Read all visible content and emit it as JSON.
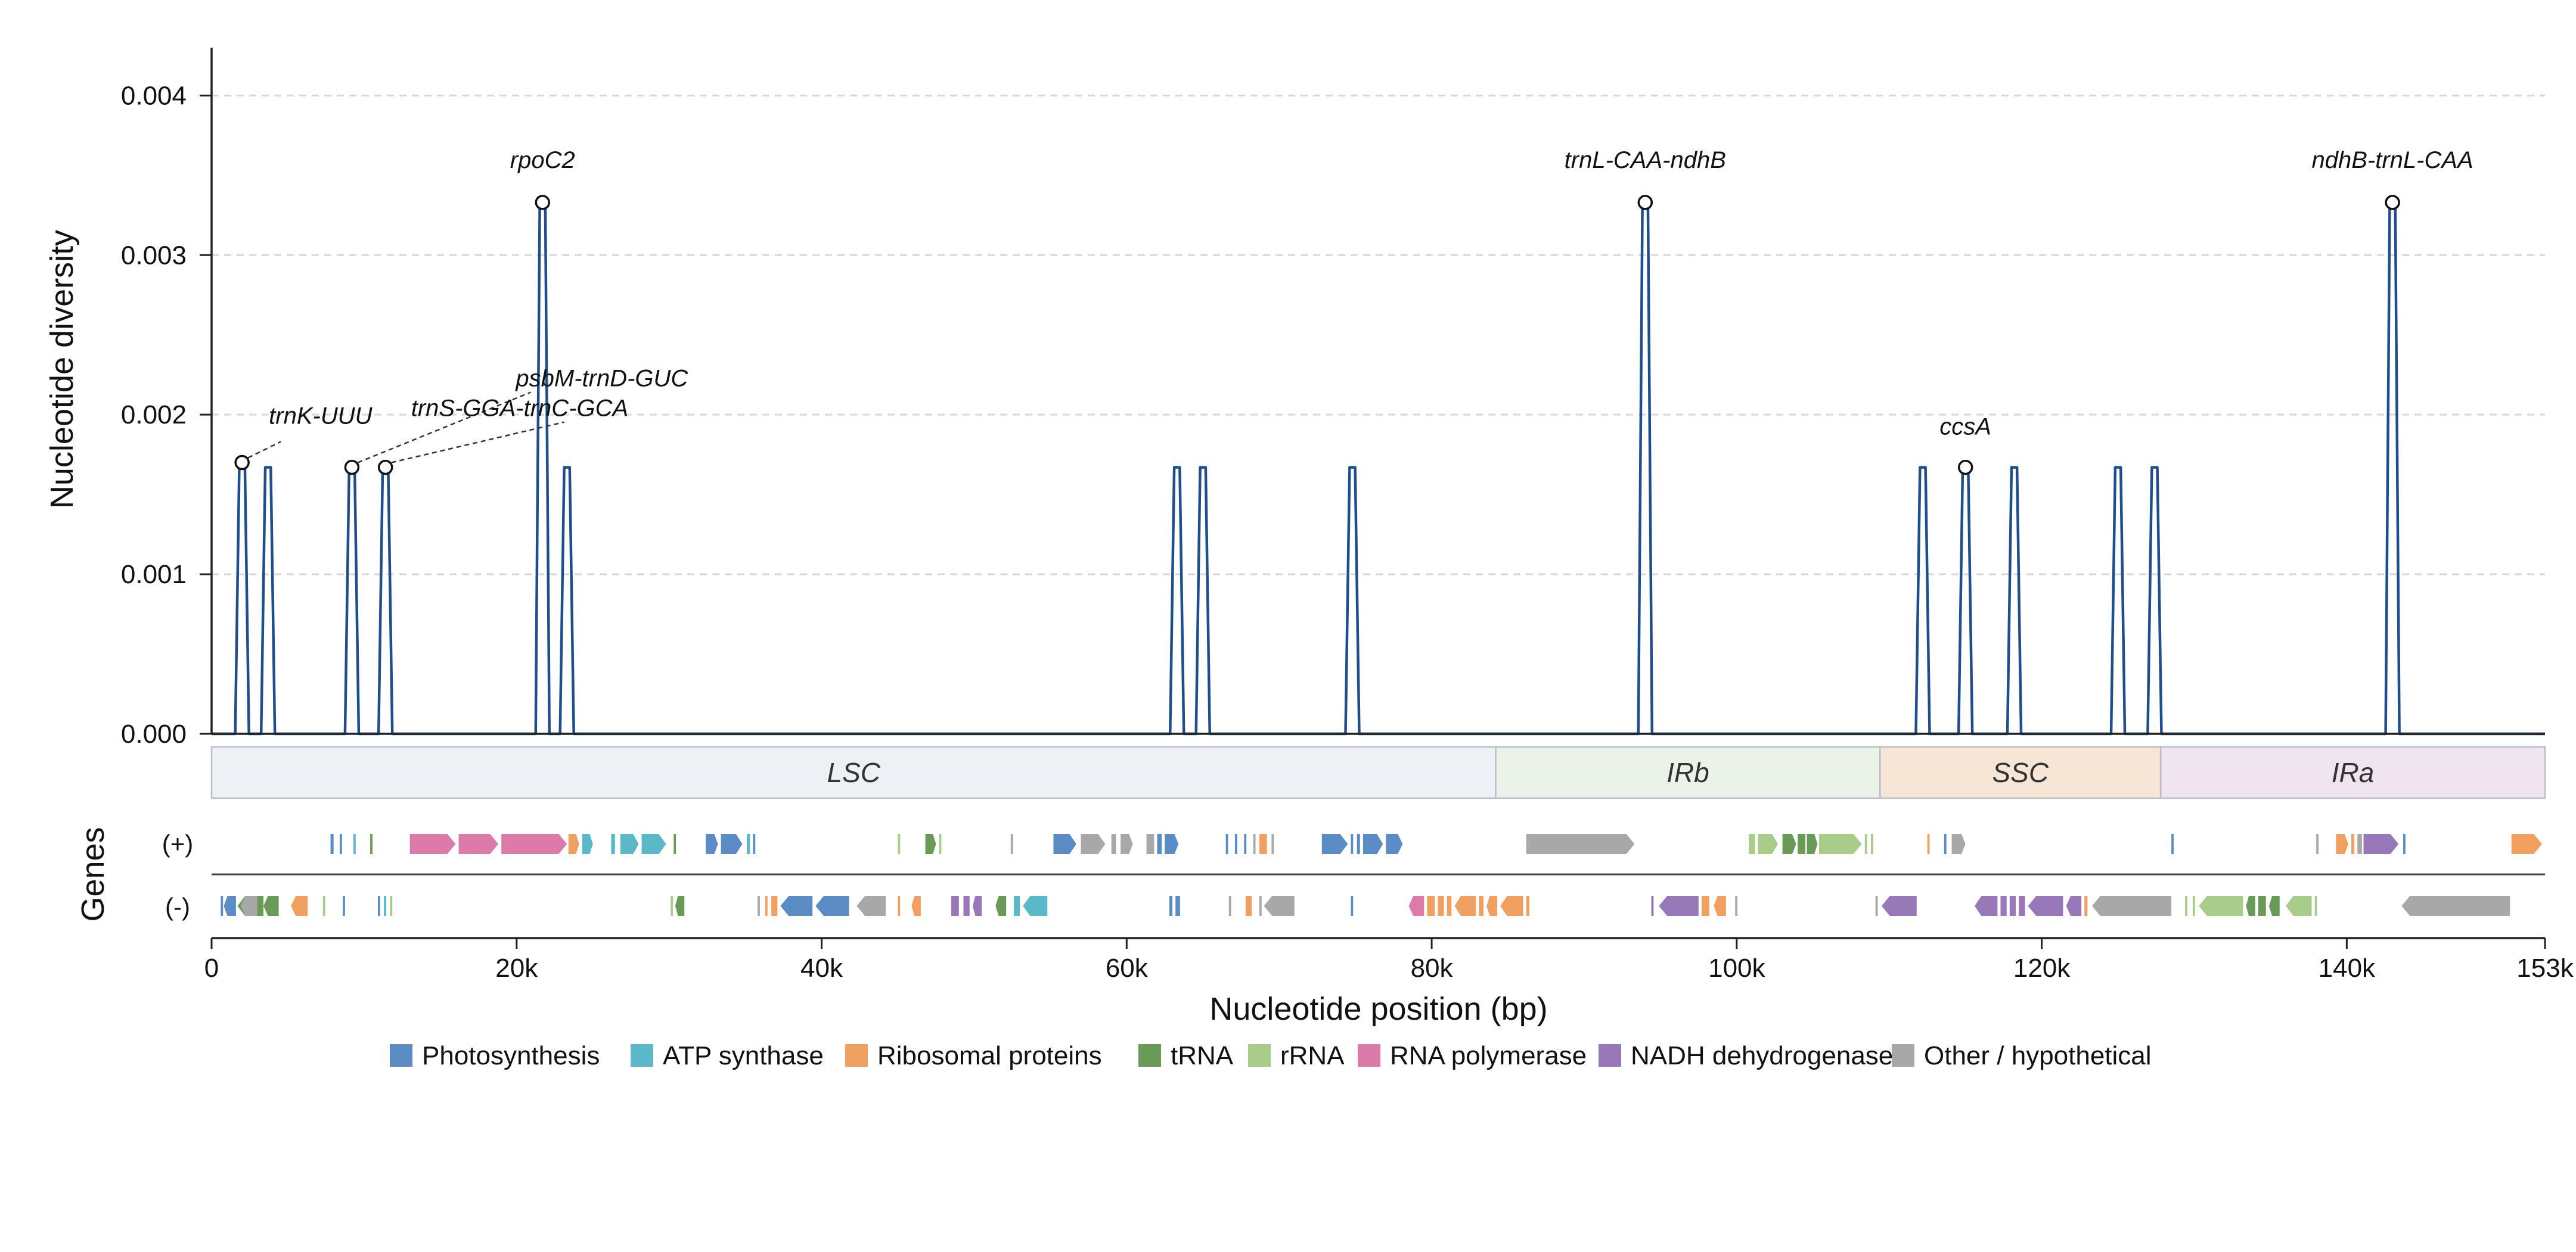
{
  "chart_data": {
    "type": "line",
    "xlabel": "Nucleotide position (bp)",
    "ylabel": "Nucleotide diversity",
    "genes_label": "Genes",
    "xlim": [
      0,
      153000
    ],
    "ylim": [
      0,
      0.0043
    ],
    "x_ticks": [
      {
        "value": 0,
        "label": "0"
      },
      {
        "value": 20000,
        "label": "20k"
      },
      {
        "value": 40000,
        "label": "40k"
      },
      {
        "value": 60000,
        "label": "60k"
      },
      {
        "value": 80000,
        "label": "80k"
      },
      {
        "value": 100000,
        "label": "100k"
      },
      {
        "value": 120000,
        "label": "120k"
      },
      {
        "value": 140000,
        "label": "140k"
      },
      {
        "value": 153000,
        "label": "153k"
      }
    ],
    "y_ticks": [
      {
        "value": 0,
        "label": "0.000"
      },
      {
        "value": 0.001,
        "label": "0.001"
      },
      {
        "value": 0.002,
        "label": "0.002"
      },
      {
        "value": 0.003,
        "label": "0.003"
      },
      {
        "value": 0.004,
        "label": "0.004"
      }
    ],
    "grid": "horizontal dashed",
    "series_color": "#1f4e8c",
    "peaks": [
      {
        "x": 2000,
        "y": 0.0017
      },
      {
        "x": 3700,
        "y": 0.00167
      },
      {
        "x": 9200,
        "y": 0.00167
      },
      {
        "x": 11400,
        "y": 0.00167
      },
      {
        "x": 21700,
        "y": 0.00333
      },
      {
        "x": 23300,
        "y": 0.00167
      },
      {
        "x": 63300,
        "y": 0.00167
      },
      {
        "x": 65000,
        "y": 0.00167
      },
      {
        "x": 74800,
        "y": 0.00167
      },
      {
        "x": 94000,
        "y": 0.00333
      },
      {
        "x": 112200,
        "y": 0.00167
      },
      {
        "x": 115000,
        "y": 0.00167
      },
      {
        "x": 118200,
        "y": 0.00167
      },
      {
        "x": 125000,
        "y": 0.00167
      },
      {
        "x": 127400,
        "y": 0.00167
      },
      {
        "x": 143000,
        "y": 0.00333
      }
    ],
    "annotations": [
      {
        "label": "trnK-UUU",
        "x": 2000,
        "y": 0.0017
      },
      {
        "label": "psbM-trnD-GUC",
        "x": 9200,
        "y": 0.00167
      },
      {
        "label": "trnS-GGA-trnC-GCA",
        "x": 11400,
        "y": 0.00167
      },
      {
        "label": "rpoC2",
        "x": 21700,
        "y": 0.00333
      },
      {
        "label": "trnL-CAA-ndhB",
        "x": 94000,
        "y": 0.00333
      },
      {
        "label": "ccsA",
        "x": 115000,
        "y": 0.00167
      },
      {
        "label": "ndhB-trnL-CAA",
        "x": 143000,
        "y": 0.00333
      }
    ],
    "regions": [
      {
        "label": "LSC",
        "start": 0,
        "end": 84200,
        "color": "#edf1f5"
      },
      {
        "label": "IRb",
        "start": 84200,
        "end": 109400,
        "color": "#ebf2e8"
      },
      {
        "label": "SSC",
        "start": 109400,
        "end": 127800,
        "color": "#f7e6d6"
      },
      {
        "label": "IRa",
        "start": 127800,
        "end": 153000,
        "color": "#f0e4f0"
      }
    ],
    "strand_labels": {
      "plus": "(+)",
      "minus": "(-)"
    },
    "gene_categories": [
      {
        "key": "photo",
        "label": "Photosynthesis",
        "color": "#5b8cc5"
      },
      {
        "key": "atp",
        "label": "ATP synthase",
        "color": "#5ab8c8"
      },
      {
        "key": "ribo",
        "label": "Ribosomal proteins",
        "color": "#f0a060"
      },
      {
        "key": "trna",
        "label": "tRNA",
        "color": "#6a9a58"
      },
      {
        "key": "rrna",
        "label": "rRNA",
        "color": "#a8cc8a"
      },
      {
        "key": "rnapol",
        "label": "RNA polymerase",
        "color": "#dc7aaa"
      },
      {
        "key": "ndh",
        "label": "NADH dehydrogenase",
        "color": "#9878b8"
      },
      {
        "key": "other",
        "label": "Other / hypothetical",
        "color": "#a8a8a8"
      }
    ],
    "genes_plus": [
      {
        "s": 7800,
        "e": 8000,
        "c": "photo"
      },
      {
        "s": 8400,
        "e": 8550,
        "c": "photo"
      },
      {
        "s": 9300,
        "e": 9450,
        "c": "atp"
      },
      {
        "s": 10400,
        "e": 10550,
        "c": "trna"
      },
      {
        "s": 13000,
        "e": 16000,
        "c": "rnapol"
      },
      {
        "s": 16200,
        "e": 18800,
        "c": "rnapol"
      },
      {
        "s": 19000,
        "e": 23300,
        "c": "rnapol"
      },
      {
        "s": 23400,
        "e": 24100,
        "c": "ribo"
      },
      {
        "s": 24300,
        "e": 25000,
        "c": "atp"
      },
      {
        "s": 26200,
        "e": 26450,
        "c": "atp"
      },
      {
        "s": 26800,
        "e": 28000,
        "c": "atp"
      },
      {
        "s": 28200,
        "e": 29800,
        "c": "atp"
      },
      {
        "s": 30300,
        "e": 30450,
        "c": "trna"
      },
      {
        "s": 32400,
        "e": 33200,
        "c": "photo"
      },
      {
        "s": 33400,
        "e": 34800,
        "c": "photo"
      },
      {
        "s": 35100,
        "e": 35300,
        "c": "atp"
      },
      {
        "s": 35500,
        "e": 35650,
        "c": "photo"
      },
      {
        "s": 45000,
        "e": 45150,
        "c": "rrna"
      },
      {
        "s": 46800,
        "e": 47500,
        "c": "trna"
      },
      {
        "s": 47700,
        "e": 47850,
        "c": "rrna"
      },
      {
        "s": 52400,
        "e": 52550,
        "c": "other"
      },
      {
        "s": 55200,
        "e": 56700,
        "c": "photo"
      },
      {
        "s": 57000,
        "e": 58600,
        "c": "other"
      },
      {
        "s": 59000,
        "e": 59300,
        "c": "other"
      },
      {
        "s": 59600,
        "e": 60400,
        "c": "other"
      },
      {
        "s": 61300,
        "e": 61800,
        "c": "other"
      },
      {
        "s": 62000,
        "e": 62300,
        "c": "photo"
      },
      {
        "s": 62500,
        "e": 63400,
        "c": "photo"
      },
      {
        "s": 66500,
        "e": 66650,
        "c": "photo"
      },
      {
        "s": 67100,
        "e": 67250,
        "c": "photo"
      },
      {
        "s": 67700,
        "e": 67850,
        "c": "photo"
      },
      {
        "s": 68300,
        "e": 68450,
        "c": "other"
      },
      {
        "s": 68700,
        "e": 69200,
        "c": "ribo"
      },
      {
        "s": 69500,
        "e": 69650,
        "c": "other"
      },
      {
        "s": 72800,
        "e": 74500,
        "c": "photo"
      },
      {
        "s": 74700,
        "e": 74850,
        "c": "photo"
      },
      {
        "s": 75100,
        "e": 75300,
        "c": "photo"
      },
      {
        "s": 75500,
        "e": 76800,
        "c": "photo"
      },
      {
        "s": 77000,
        "e": 78100,
        "c": "photo"
      },
      {
        "s": 86200,
        "e": 93300,
        "c": "other"
      },
      {
        "s": 100800,
        "e": 101200,
        "c": "rrna"
      },
      {
        "s": 101400,
        "e": 102700,
        "c": "rrna"
      },
      {
        "s": 103000,
        "e": 103900,
        "c": "trna"
      },
      {
        "s": 104000,
        "e": 104500,
        "c": "trna"
      },
      {
        "s": 104600,
        "e": 105300,
        "c": "trna"
      },
      {
        "s": 105400,
        "e": 108200,
        "c": "rrna"
      },
      {
        "s": 108400,
        "e": 108550,
        "c": "rrna"
      },
      {
        "s": 108800,
        "e": 108950,
        "c": "rrna"
      },
      {
        "s": 112500,
        "e": 112650,
        "c": "ribo"
      },
      {
        "s": 113600,
        "e": 113750,
        "c": "photo"
      },
      {
        "s": 114100,
        "e": 115000,
        "c": "other"
      },
      {
        "s": 128500,
        "e": 128650,
        "c": "photo"
      },
      {
        "s": 138000,
        "e": 138150,
        "c": "other"
      },
      {
        "s": 139300,
        "e": 140100,
        "c": "ribo"
      },
      {
        "s": 140300,
        "e": 140500,
        "c": "ribo"
      },
      {
        "s": 140700,
        "e": 141000,
        "c": "other"
      },
      {
        "s": 141100,
        "e": 143400,
        "c": "ndh"
      },
      {
        "s": 143700,
        "e": 143850,
        "c": "photo"
      },
      {
        "s": 150800,
        "e": 152800,
        "c": "ribo"
      }
    ],
    "genes_minus": [
      {
        "s": 600,
        "e": 750,
        "c": "photo"
      },
      {
        "s": 800,
        "e": 1600,
        "c": "photo"
      },
      {
        "s": 1700,
        "e": 3400,
        "c": "trna"
      },
      {
        "s": 1900,
        "e": 3000,
        "c": "other"
      },
      {
        "s": 3400,
        "e": 4400,
        "c": "trna"
      },
      {
        "s": 5200,
        "e": 6300,
        "c": "ribo"
      },
      {
        "s": 7300,
        "e": 7450,
        "c": "rrna"
      },
      {
        "s": 8600,
        "e": 8750,
        "c": "photo"
      },
      {
        "s": 10900,
        "e": 11050,
        "c": "photo"
      },
      {
        "s": 11300,
        "e": 11450,
        "c": "atp"
      },
      {
        "s": 11700,
        "e": 11850,
        "c": "rrna"
      },
      {
        "s": 30100,
        "e": 30250,
        "c": "rrna"
      },
      {
        "s": 30400,
        "e": 31000,
        "c": "trna"
      },
      {
        "s": 35800,
        "e": 35950,
        "c": "other"
      },
      {
        "s": 36300,
        "e": 36450,
        "c": "ribo"
      },
      {
        "s": 36700,
        "e": 37100,
        "c": "ribo"
      },
      {
        "s": 37300,
        "e": 39400,
        "c": "photo"
      },
      {
        "s": 39600,
        "e": 41800,
        "c": "photo"
      },
      {
        "s": 42300,
        "e": 44200,
        "c": "other"
      },
      {
        "s": 45000,
        "e": 45150,
        "c": "ribo"
      },
      {
        "s": 45900,
        "e": 46500,
        "c": "ribo"
      },
      {
        "s": 48500,
        "e": 49000,
        "c": "ndh"
      },
      {
        "s": 49300,
        "e": 49700,
        "c": "ndh"
      },
      {
        "s": 49900,
        "e": 50500,
        "c": "ndh"
      },
      {
        "s": 51400,
        "e": 52100,
        "c": "trna"
      },
      {
        "s": 52600,
        "e": 53000,
        "c": "atp"
      },
      {
        "s": 53200,
        "e": 54800,
        "c": "atp"
      },
      {
        "s": 62800,
        "e": 63000,
        "c": "photo"
      },
      {
        "s": 63200,
        "e": 63500,
        "c": "photo"
      },
      {
        "s": 66700,
        "e": 66850,
        "c": "other"
      },
      {
        "s": 67800,
        "e": 68200,
        "c": "ribo"
      },
      {
        "s": 68700,
        "e": 68850,
        "c": "other"
      },
      {
        "s": 69000,
        "e": 71000,
        "c": "other"
      },
      {
        "s": 74700,
        "e": 74850,
        "c": "photo"
      },
      {
        "s": 78500,
        "e": 79500,
        "c": "rnapol"
      },
      {
        "s": 79700,
        "e": 80200,
        "c": "ribo"
      },
      {
        "s": 80400,
        "e": 80800,
        "c": "ribo"
      },
      {
        "s": 81000,
        "e": 81300,
        "c": "ribo"
      },
      {
        "s": 81500,
        "e": 82900,
        "c": "ribo"
      },
      {
        "s": 83100,
        "e": 83400,
        "c": "ribo"
      },
      {
        "s": 83600,
        "e": 84300,
        "c": "ribo"
      },
      {
        "s": 84500,
        "e": 86000,
        "c": "ribo"
      },
      {
        "s": 86200,
        "e": 86400,
        "c": "ribo"
      },
      {
        "s": 94400,
        "e": 94550,
        "c": "ndh"
      },
      {
        "s": 94900,
        "e": 97500,
        "c": "ndh"
      },
      {
        "s": 97700,
        "e": 98200,
        "c": "ribo"
      },
      {
        "s": 98500,
        "e": 99300,
        "c": "ribo"
      },
      {
        "s": 99900,
        "e": 100050,
        "c": "other"
      },
      {
        "s": 109100,
        "e": 109250,
        "c": "other"
      },
      {
        "s": 109500,
        "e": 111800,
        "c": "ndh"
      },
      {
        "s": 115600,
        "e": 117100,
        "c": "ndh"
      },
      {
        "s": 117300,
        "e": 117700,
        "c": "ndh"
      },
      {
        "s": 117900,
        "e": 118300,
        "c": "ndh"
      },
      {
        "s": 118500,
        "e": 118900,
        "c": "ndh"
      },
      {
        "s": 119100,
        "e": 121400,
        "c": "ndh"
      },
      {
        "s": 121600,
        "e": 122600,
        "c": "ndh"
      },
      {
        "s": 122800,
        "e": 123000,
        "c": "ribo"
      },
      {
        "s": 123300,
        "e": 128500,
        "c": "other"
      },
      {
        "s": 129400,
        "e": 129550,
        "c": "rrna"
      },
      {
        "s": 129900,
        "e": 130050,
        "c": "rrna"
      },
      {
        "s": 130300,
        "e": 133200,
        "c": "rrna"
      },
      {
        "s": 133400,
        "e": 134000,
        "c": "trna"
      },
      {
        "s": 134200,
        "e": 134700,
        "c": "trna"
      },
      {
        "s": 134900,
        "e": 135600,
        "c": "trna"
      },
      {
        "s": 136000,
        "e": 137700,
        "c": "rrna"
      },
      {
        "s": 137900,
        "e": 138050,
        "c": "rrna"
      },
      {
        "s": 143600,
        "e": 150700,
        "c": "other"
      }
    ]
  }
}
